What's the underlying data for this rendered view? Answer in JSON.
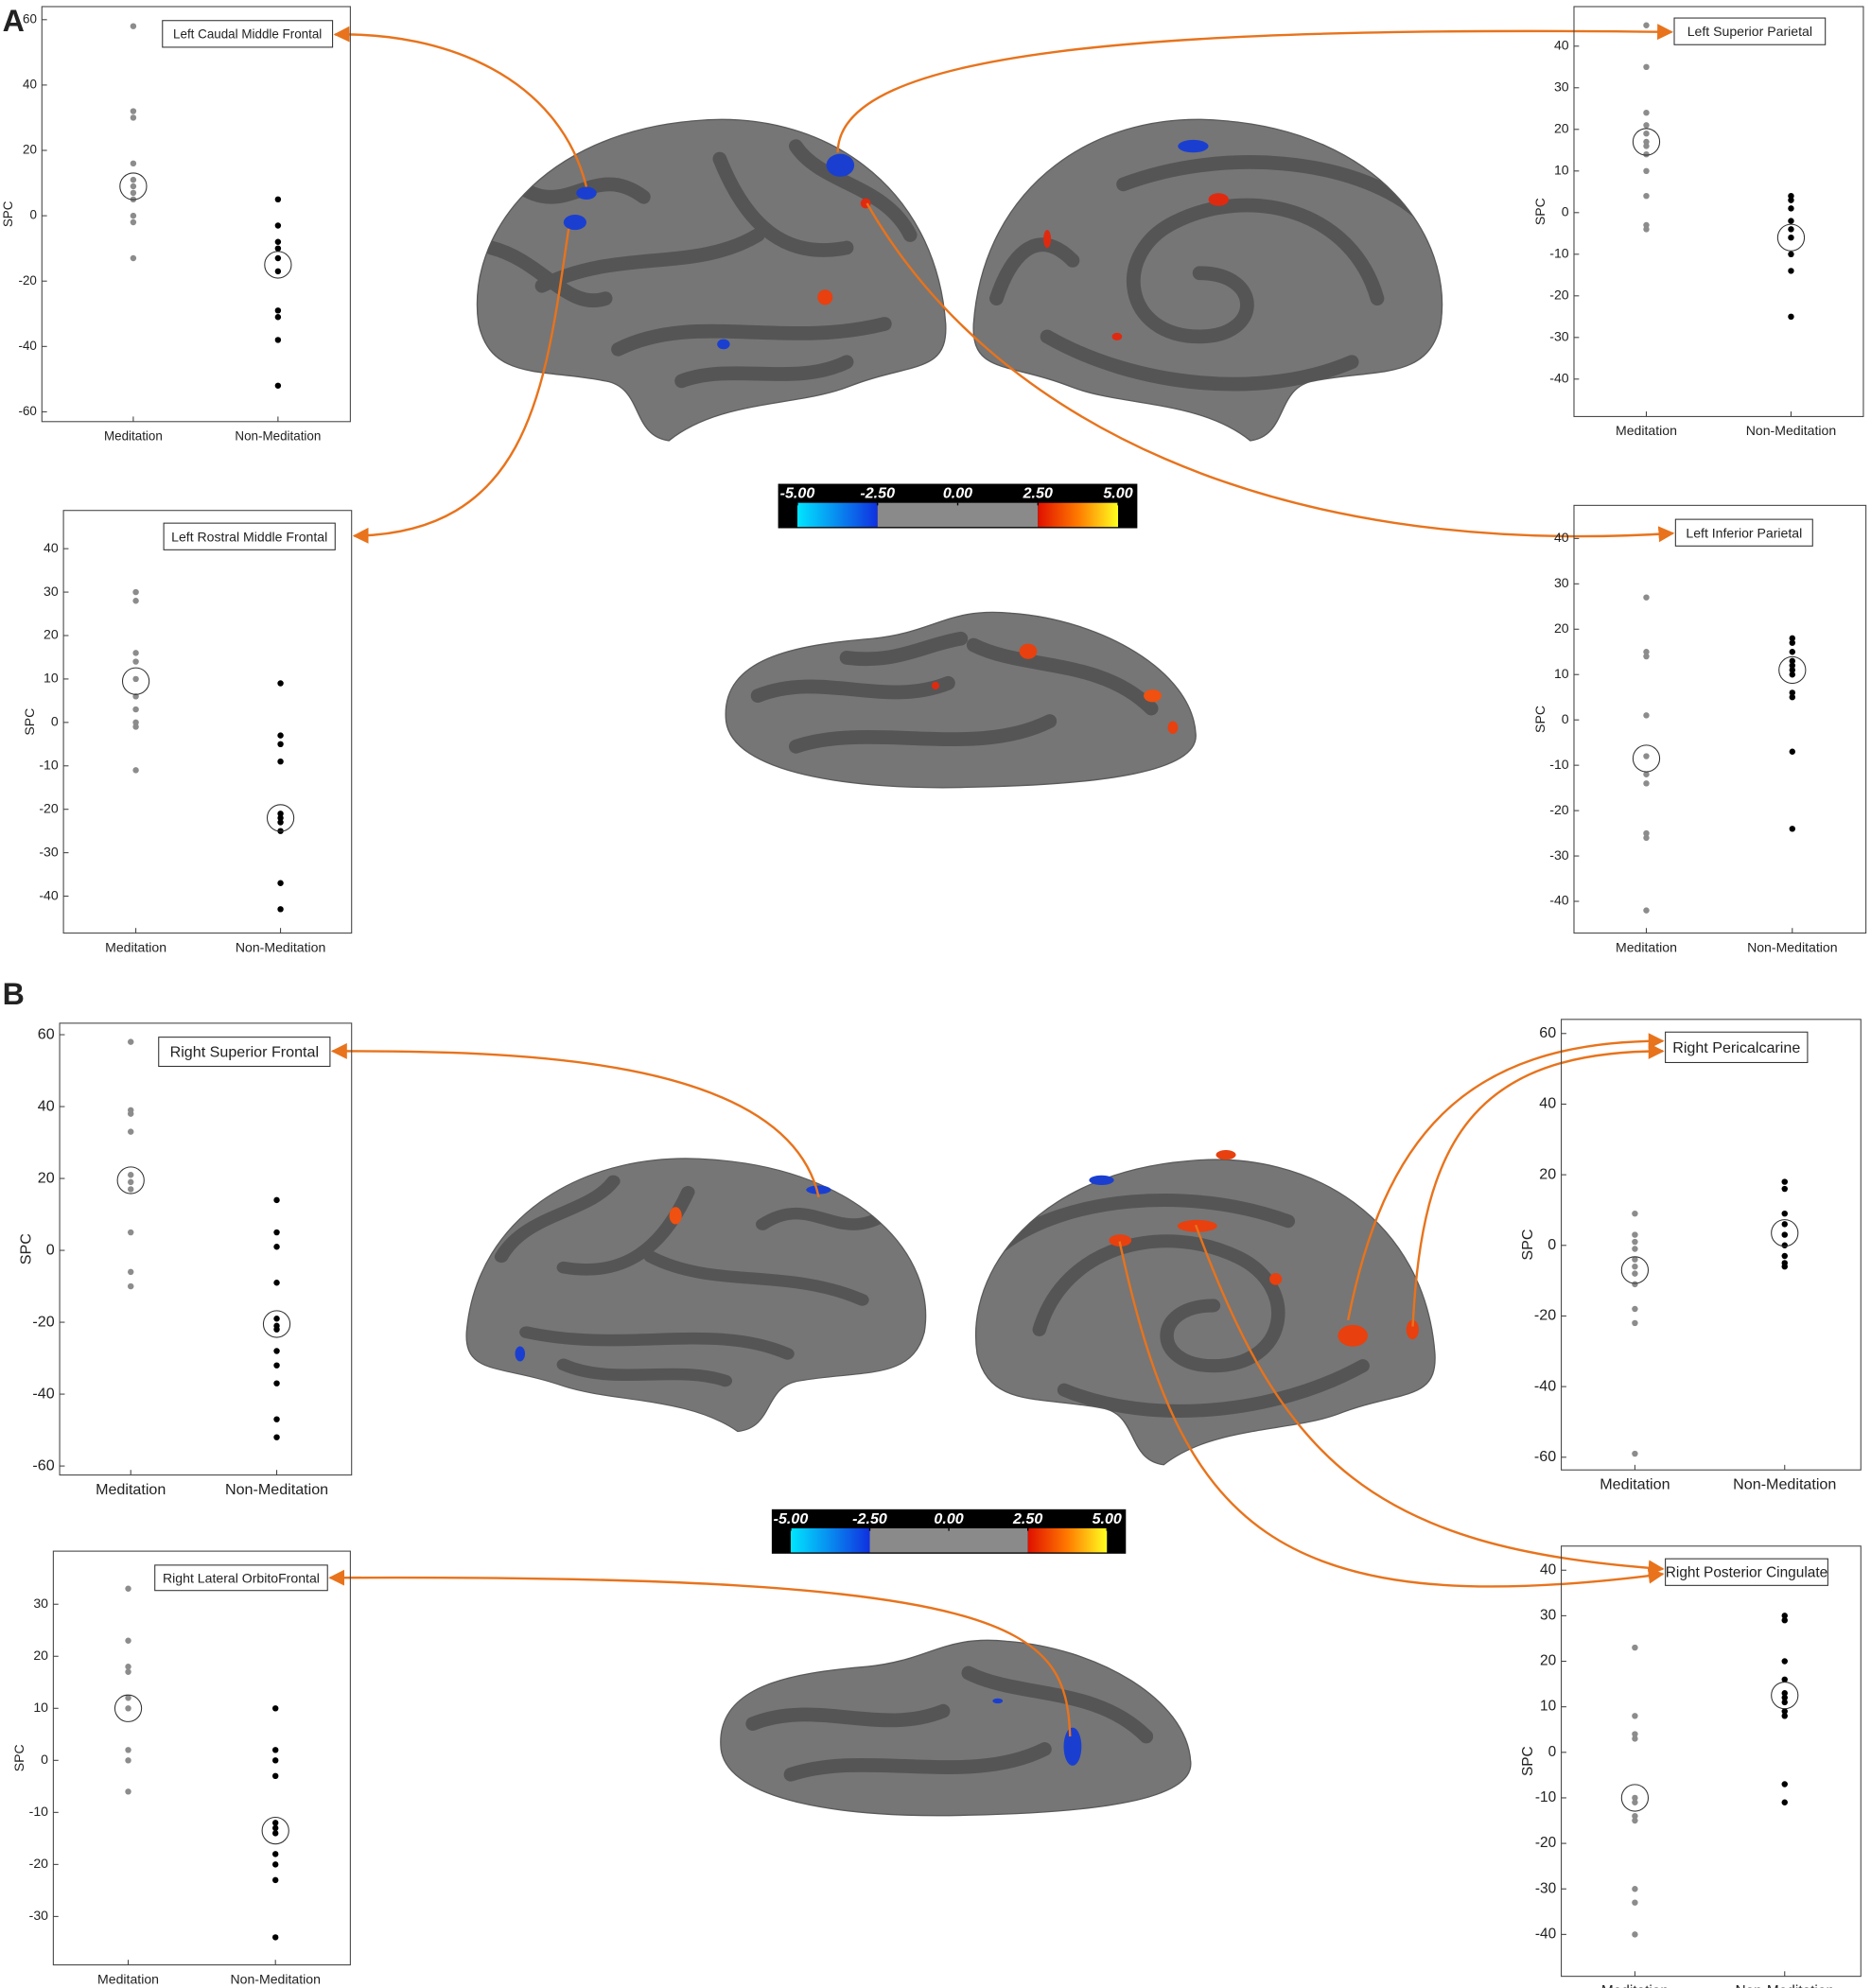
{
  "panels": [
    "A",
    "B"
  ],
  "colorbars": [
    {
      "lim": [
        -5.6,
        5.6
      ],
      "ticks": [
        {
          "value": -5,
          "label": "-5.00"
        },
        {
          "value": -2.5,
          "label": "-2.50"
        },
        {
          "value": 0,
          "label": "0.00"
        },
        {
          "value": 2.5,
          "label": "2.50"
        },
        {
          "value": 5,
          "label": "5.00"
        }
      ]
    },
    {
      "lim": [
        -5.6,
        5.6
      ],
      "ticks": [
        {
          "value": -5,
          "label": "-5.00"
        },
        {
          "value": -2.5,
          "label": "-2.50"
        },
        {
          "value": 0,
          "label": "0.00"
        },
        {
          "value": 2.5,
          "label": "2.50"
        },
        {
          "value": 5,
          "label": "5.00"
        }
      ]
    }
  ],
  "chart_data": [
    {
      "type": "strip",
      "title": "Left Caudal Middle Frontal",
      "ylabel": "SPC",
      "categories": [
        "Meditation",
        "Non-Meditation"
      ],
      "ylim": [
        -63,
        64
      ],
      "yticks": [
        -60,
        -40,
        -20,
        0,
        20,
        40,
        60
      ],
      "series": [
        {
          "color": "#8c8c8c",
          "values": [
            58,
            32,
            30,
            16,
            11,
            9,
            7,
            5,
            0,
            -2,
            -13
          ],
          "mean": 9
        },
        {
          "color": "#000000",
          "values": [
            5,
            -3,
            -8,
            -10,
            -13,
            -17,
            -29,
            -31,
            -38,
            -52
          ],
          "mean": -15
        }
      ]
    },
    {
      "type": "strip",
      "title": "Left Superior Parietal",
      "ylabel": "SPC",
      "categories": [
        "Meditation",
        "Non-Meditation"
      ],
      "ylim": [
        -49,
        49.5
      ],
      "yticks": [
        -40,
        -30,
        -20,
        -10,
        0,
        10,
        20,
        30,
        40
      ],
      "series": [
        {
          "color": "#8c8c8c",
          "values": [
            45,
            35,
            24,
            21,
            19,
            17,
            16,
            14,
            10,
            4,
            -3,
            -4
          ],
          "mean": 17
        },
        {
          "color": "#000000",
          "values": [
            4,
            3,
            1,
            -2,
            -4,
            -6,
            -10,
            -14,
            -25
          ],
          "mean": -6
        }
      ]
    },
    {
      "type": "strip",
      "title": "Left Rostral Middle Frontal",
      "ylabel": "SPC",
      "categories": [
        "Meditation",
        "Non-Meditation"
      ],
      "ylim": [
        -48.5,
        48.8
      ],
      "yticks": [
        -40,
        -30,
        -20,
        -10,
        0,
        10,
        20,
        30,
        40
      ],
      "series": [
        {
          "color": "#8c8c8c",
          "values": [
            30,
            28,
            16,
            14,
            10,
            6,
            3,
            0,
            -1,
            -11
          ],
          "mean": 9.5
        },
        {
          "color": "#000000",
          "values": [
            9,
            -3,
            -5,
            -9,
            -21,
            -22,
            -23,
            -25,
            -37,
            -43
          ],
          "mean": -22
        }
      ]
    },
    {
      "type": "strip",
      "title": "Left Inferior Parietal",
      "ylabel": "SPC",
      "categories": [
        "Meditation",
        "Non-Meditation"
      ],
      "ylim": [
        -47,
        47.3
      ],
      "yticks": [
        -40,
        -30,
        -20,
        -10,
        0,
        10,
        20,
        30,
        40
      ],
      "series": [
        {
          "color": "#8c8c8c",
          "values": [
            27,
            15,
            14,
            1,
            -8,
            -12,
            -14,
            -25,
            -26,
            -42
          ],
          "mean": -8.5
        },
        {
          "color": "#000000",
          "values": [
            18,
            17,
            15,
            13,
            12,
            11,
            10,
            6,
            5,
            -7,
            -24
          ],
          "mean": 11
        }
      ]
    },
    {
      "type": "strip",
      "title": "Right Superior Frontal",
      "ylabel": "SPC",
      "categories": [
        "Meditation",
        "Non-Meditation"
      ],
      "ylim": [
        -62.5,
        63.2
      ],
      "yticks": [
        -60,
        -40,
        -20,
        0,
        20,
        40,
        60
      ],
      "series": [
        {
          "color": "#8c8c8c",
          "values": [
            58,
            39,
            38,
            33,
            21,
            19,
            17,
            5,
            -6,
            -10
          ],
          "mean": 19.5
        },
        {
          "color": "#000000",
          "values": [
            14,
            5,
            1,
            -9,
            -19,
            -21,
            -22,
            -28,
            -32,
            -37,
            -47,
            -52
          ],
          "mean": -20.5
        }
      ]
    },
    {
      "type": "strip",
      "title": "Right Pericalcarine",
      "ylabel": "SPC",
      "categories": [
        "Meditation",
        "Non-Meditation"
      ],
      "ylim": [
        -63.6,
        64
      ],
      "yticks": [
        -60,
        -40,
        -20,
        0,
        20,
        40,
        60
      ],
      "series": [
        {
          "color": "#8c8c8c",
          "values": [
            9,
            3,
            1,
            -1,
            -4,
            -6,
            -8,
            -11,
            -18,
            -22,
            -59
          ],
          "mean": -7
        },
        {
          "color": "#000000",
          "values": [
            18,
            16,
            9,
            6,
            3,
            0,
            -3,
            -5,
            -6
          ],
          "mean": 3.5
        }
      ]
    },
    {
      "type": "strip",
      "title": "Right Lateral OrbitoFrontal",
      "ylabel": "SPC",
      "categories": [
        "Meditation",
        "Non-Meditation"
      ],
      "ylim": [
        -39.3,
        40.2
      ],
      "yticks": [
        -30,
        -20,
        -10,
        0,
        10,
        20,
        30
      ],
      "series": [
        {
          "color": "#8c8c8c",
          "values": [
            33,
            23,
            18,
            17,
            12,
            10,
            2,
            0,
            -6
          ],
          "mean": 10
        },
        {
          "color": "#000000",
          "values": [
            10,
            2,
            0,
            -3,
            -12,
            -13,
            -14,
            -18,
            -20,
            -23,
            -34
          ],
          "mean": -13.5
        }
      ]
    },
    {
      "type": "strip",
      "title": "Right Posterior Cingulate",
      "ylabel": "SPC",
      "categories": [
        "Meditation",
        "Non-Meditation"
      ],
      "ylim": [
        -49.2,
        45.3
      ],
      "yticks": [
        -40,
        -30,
        -20,
        -10,
        0,
        10,
        20,
        30,
        40
      ],
      "series": [
        {
          "color": "#8c8c8c",
          "values": [
            23,
            8,
            4,
            3,
            -10,
            -11,
            -14,
            -15,
            -30,
            -33,
            -40
          ],
          "mean": -10
        },
        {
          "color": "#000000",
          "values": [
            30,
            29,
            20,
            16,
            13,
            12,
            11,
            9,
            8,
            -7,
            -11
          ],
          "mean": 12.5
        }
      ]
    }
  ]
}
